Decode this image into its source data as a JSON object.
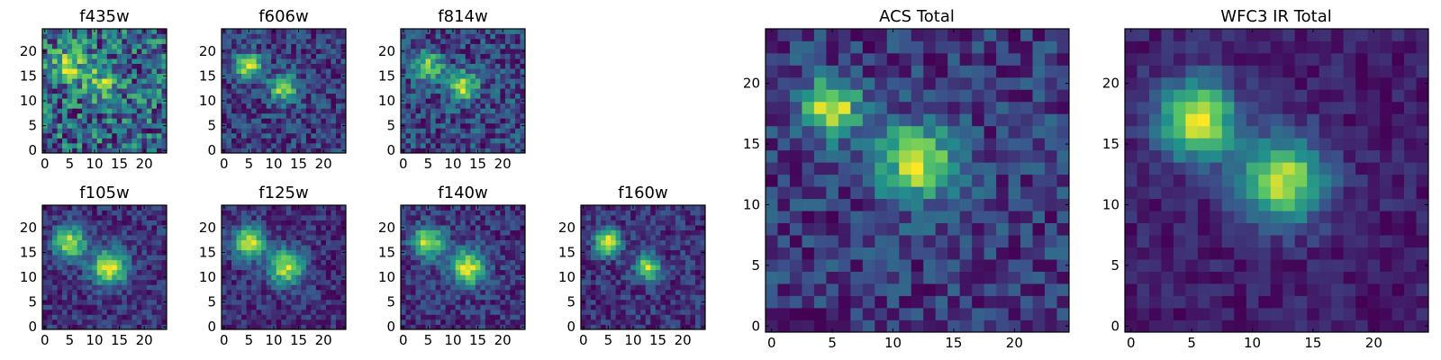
{
  "chart_data": [
    {
      "type": "heatmap",
      "title": "f435w",
      "xticks": [
        "0",
        "5",
        "10",
        "15",
        "20"
      ],
      "yticks": [
        "0",
        "5",
        "10",
        "15",
        "20"
      ],
      "xlim": [
        -0.5,
        24.5
      ],
      "ylim": [
        -0.5,
        24.5
      ],
      "grid": false,
      "sources": [
        {
          "x": 5,
          "y": 17,
          "amp": 0.35,
          "sigma": 2.5
        },
        {
          "x": 12,
          "y": 14,
          "amp": 0.3,
          "sigma": 2.5
        }
      ],
      "noise": 0.55,
      "seed": 11
    },
    {
      "type": "heatmap",
      "title": "f606w",
      "xticks": [
        "0",
        "5",
        "10",
        "15",
        "20"
      ],
      "yticks": [
        "0",
        "5",
        "10",
        "15",
        "20"
      ],
      "xlim": [
        -0.5,
        24.5
      ],
      "ylim": [
        -0.5,
        24.5
      ],
      "grid": false,
      "sources": [
        {
          "x": 5,
          "y": 17,
          "amp": 0.75,
          "sigma": 1.8
        },
        {
          "x": 12,
          "y": 12.5,
          "amp": 0.65,
          "sigma": 2.0
        }
      ],
      "noise": 0.4,
      "seed": 23
    },
    {
      "type": "heatmap",
      "title": "f814w",
      "xticks": [
        "0",
        "5",
        "10",
        "15",
        "20"
      ],
      "yticks": [
        "0",
        "5",
        "10",
        "15",
        "20"
      ],
      "xlim": [
        -0.5,
        24.5
      ],
      "ylim": [
        -0.5,
        24.5
      ],
      "grid": false,
      "sources": [
        {
          "x": 5,
          "y": 17,
          "amp": 0.6,
          "sigma": 2.0
        },
        {
          "x": 12,
          "y": 13,
          "amp": 0.7,
          "sigma": 2.0
        }
      ],
      "noise": 0.45,
      "seed": 37
    },
    {
      "type": "heatmap",
      "title": "f105w",
      "xticks": [
        "0",
        "5",
        "10",
        "15",
        "20"
      ],
      "yticks": [
        "0",
        "5",
        "10",
        "15",
        "20"
      ],
      "xlim": [
        -0.5,
        24.5
      ],
      "ylim": [
        -0.5,
        24.5
      ],
      "grid": false,
      "sources": [
        {
          "x": 5,
          "y": 17,
          "amp": 0.8,
          "sigma": 2.2
        },
        {
          "x": 13,
          "y": 12,
          "amp": 0.85,
          "sigma": 2.5
        }
      ],
      "noise": 0.3,
      "seed": 41
    },
    {
      "type": "heatmap",
      "title": "f125w",
      "xticks": [
        "0",
        "5",
        "10",
        "15",
        "20"
      ],
      "yticks": [
        "0",
        "5",
        "10",
        "15",
        "20"
      ],
      "xlim": [
        -0.5,
        24.5
      ],
      "ylim": [
        -0.5,
        24.5
      ],
      "grid": false,
      "sources": [
        {
          "x": 5,
          "y": 17,
          "amp": 0.85,
          "sigma": 2.2
        },
        {
          "x": 12.5,
          "y": 12,
          "amp": 0.8,
          "sigma": 2.5
        }
      ],
      "noise": 0.3,
      "seed": 53
    },
    {
      "type": "heatmap",
      "title": "f140w",
      "xticks": [
        "0",
        "5",
        "10",
        "15",
        "20"
      ],
      "yticks": [
        "0",
        "5",
        "10",
        "15",
        "20"
      ],
      "xlim": [
        -0.5,
        24.5
      ],
      "ylim": [
        -0.5,
        24.5
      ],
      "grid": false,
      "sources": [
        {
          "x": 5,
          "y": 17,
          "amp": 0.8,
          "sigma": 2.2
        },
        {
          "x": 13,
          "y": 12,
          "amp": 0.8,
          "sigma": 2.5
        }
      ],
      "noise": 0.32,
      "seed": 67
    },
    {
      "type": "heatmap",
      "title": "f160w",
      "xticks": [
        "0",
        "5",
        "10",
        "15",
        "20"
      ],
      "yticks": [
        "0",
        "5",
        "10",
        "15",
        "20"
      ],
      "xlim": [
        -0.5,
        24.5
      ],
      "ylim": [
        -0.5,
        24.5
      ],
      "grid": false,
      "sources": [
        {
          "x": 5,
          "y": 17,
          "amp": 0.9,
          "sigma": 1.8
        },
        {
          "x": 13,
          "y": 12,
          "amp": 0.75,
          "sigma": 1.8
        }
      ],
      "noise": 0.32,
      "seed": 79
    },
    {
      "type": "heatmap",
      "title": "ACS Total",
      "xticks": [
        "0",
        "5",
        "10",
        "15",
        "20"
      ],
      "yticks": [
        "0",
        "5",
        "10",
        "15",
        "20"
      ],
      "xlim": [
        -0.5,
        24.5
      ],
      "ylim": [
        -0.5,
        24.5
      ],
      "grid": false,
      "sources": [
        {
          "x": 5,
          "y": 18,
          "amp": 0.85,
          "sigma": 1.6
        },
        {
          "x": 12,
          "y": 13.5,
          "amp": 0.8,
          "sigma": 2.2
        }
      ],
      "noise": 0.38,
      "seed": 97
    },
    {
      "type": "heatmap",
      "title": "WFC3 IR Total",
      "xticks": [
        "0",
        "5",
        "10",
        "15",
        "20"
      ],
      "yticks": [
        "0",
        "5",
        "10",
        "15",
        "20"
      ],
      "xlim": [
        -0.5,
        24.5
      ],
      "ylim": [
        -0.5,
        24.5
      ],
      "grid": false,
      "sources": [
        {
          "x": 5.5,
          "y": 17,
          "amp": 0.95,
          "sigma": 2.2
        },
        {
          "x": 12.5,
          "y": 12,
          "amp": 0.9,
          "sigma": 2.4
        }
      ],
      "noise": 0.2,
      "seed": 131
    }
  ],
  "colormap": [
    "#440154",
    "#3b528b",
    "#21918c",
    "#5ec962",
    "#fde725"
  ]
}
